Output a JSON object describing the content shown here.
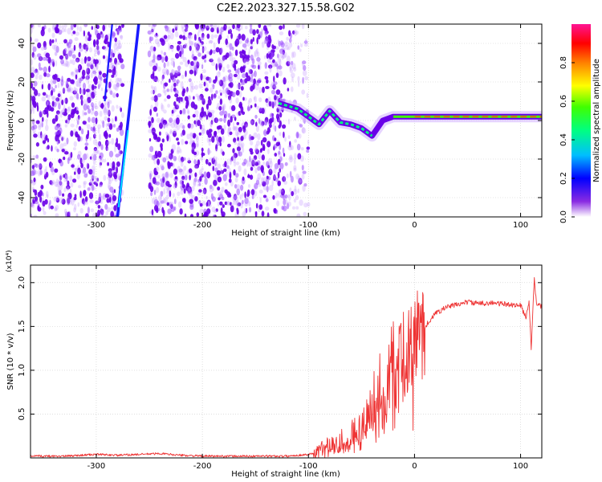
{
  "page_title": "C2E2.2023.327.15.58.G02",
  "chart_data": [
    {
      "type": "heatmap",
      "xlabel": "Height of straight line (km)",
      "ylabel": "Frequency (Hz)",
      "xlim": [
        -362,
        120
      ],
      "ylim": [
        -50,
        50
      ],
      "x_ticks": [
        -300,
        -200,
        -100,
        0,
        100
      ],
      "y_ticks": [
        -40,
        -20,
        0,
        20,
        40
      ],
      "colorbar": {
        "label": "Normalized spectral amplitude",
        "range": [
          0.0,
          1.0
        ],
        "ticks": [
          "0.0",
          "0.2",
          "0.4",
          "0.6",
          "0.8"
        ],
        "colors": [
          "#ffffff",
          "#8a2be2",
          "#0000ff",
          "#00bfff",
          "#00ff80",
          "#40ff00",
          "#ffff00",
          "#ff8000",
          "#ff0000",
          "#ff1493"
        ]
      },
      "features": {
        "noise_band_1": [
          -362,
          -275
        ],
        "noise_band_2": [
          -250,
          -122
        ],
        "sparse_noise": [
          -122,
          -100
        ],
        "diagonal_line_1": [
          [
            -280,
            -50
          ],
          [
            -260,
            50
          ]
        ],
        "diagonal_line_2": [
          [
            -292,
            10
          ],
          [
            -285,
            50
          ]
        ],
        "signal_track": [
          [
            -128,
            9
          ],
          [
            -110,
            6
          ],
          [
            -100,
            2
          ],
          [
            -90,
            -2
          ],
          [
            -80,
            5
          ],
          [
            -70,
            -1
          ],
          [
            -60,
            -2
          ],
          [
            -50,
            -4
          ],
          [
            -40,
            -8
          ],
          [
            -30,
            0
          ],
          [
            -20,
            2
          ],
          [
            0,
            2
          ],
          [
            40,
            2
          ],
          [
            80,
            2
          ],
          [
            120,
            2
          ]
        ]
      },
      "grid": true
    },
    {
      "type": "line",
      "xlabel": "Height of straight line (km)",
      "ylabel": "SNR (10 * v/v)",
      "yscale_note": "(x10⁴)",
      "xlim": [
        -362,
        120
      ],
      "ylim": [
        0,
        2.2
      ],
      "x_ticks": [
        -300,
        -200,
        -100,
        0,
        100
      ],
      "y_ticks": [
        "0.5",
        "1.0",
        "1.5",
        "2.0"
      ],
      "series": [
        {
          "color": "#ee3333",
          "x": [
            -362,
            -330,
            -300,
            -280,
            -260,
            -240,
            -220,
            -200,
            -180,
            -160,
            -140,
            -120,
            -100,
            -90,
            -80,
            -70,
            -60,
            -50,
            -45,
            -40,
            -35,
            -30,
            -25,
            -20,
            -15,
            -10,
            -5,
            0,
            5,
            10,
            20,
            30,
            40,
            50,
            60,
            70,
            80,
            90,
            100,
            105,
            108,
            110,
            113,
            115,
            120
          ],
          "values": [
            0.02,
            0.02,
            0.04,
            0.03,
            0.04,
            0.05,
            0.03,
            0.02,
            0.02,
            0.02,
            0.02,
            0.02,
            0.04,
            0.07,
            0.15,
            0.2,
            0.25,
            0.35,
            0.45,
            0.6,
            0.8,
            0.9,
            0.85,
            1.2,
            1.05,
            1.25,
            1.35,
            1.3,
            1.45,
            1.5,
            1.65,
            1.72,
            1.75,
            1.78,
            1.76,
            1.77,
            1.76,
            1.75,
            1.74,
            1.6,
            1.8,
            1.25,
            2.05,
            1.75,
            1.72
          ]
        }
      ],
      "grid": true
    }
  ]
}
